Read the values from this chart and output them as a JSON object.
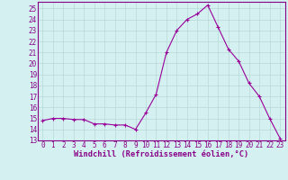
{
  "x": [
    0,
    1,
    2,
    3,
    4,
    5,
    6,
    7,
    8,
    9,
    10,
    11,
    12,
    13,
    14,
    15,
    16,
    17,
    18,
    19,
    20,
    21,
    22,
    23
  ],
  "y": [
    14.8,
    15.0,
    15.0,
    14.9,
    14.9,
    14.5,
    14.5,
    14.4,
    14.4,
    14.0,
    15.5,
    17.2,
    21.0,
    23.0,
    24.0,
    24.5,
    25.3,
    23.3,
    21.3,
    20.2,
    18.2,
    17.0,
    15.0,
    13.2
  ],
  "line_color": "#990099",
  "marker_color": "#990099",
  "bg_color": "#d4f0f0",
  "grid_color": "#b8d8d8",
  "axis_color": "#880088",
  "spine_color": "#880088",
  "xlabel": "Windchill (Refroidissement éolien,°C)",
  "ylim": [
    13,
    25.6
  ],
  "xlim": [
    -0.5,
    23.5
  ],
  "yticks": [
    13,
    14,
    15,
    16,
    17,
    18,
    19,
    20,
    21,
    22,
    23,
    24,
    25
  ],
  "xticks": [
    0,
    1,
    2,
    3,
    4,
    5,
    6,
    7,
    8,
    9,
    10,
    11,
    12,
    13,
    14,
    15,
    16,
    17,
    18,
    19,
    20,
    21,
    22,
    23
  ],
  "tick_fontsize": 5.5,
  "xlabel_fontsize": 6.2,
  "marker_size": 3.5
}
